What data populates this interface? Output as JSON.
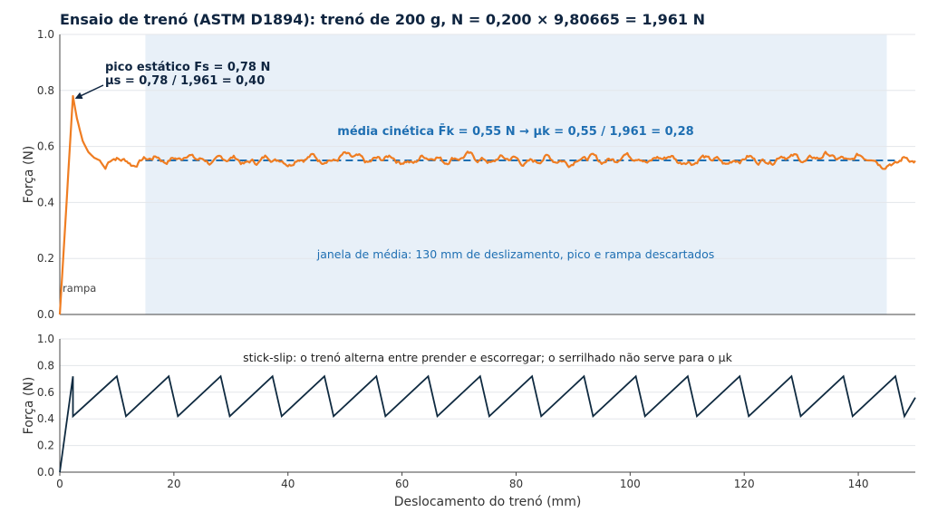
{
  "title": "Ensaio de trenó (ASTM D1894): trenó de 200 g, N = 0,200 × 9,80665 = 1,961 N",
  "colors": {
    "force_curve": "#ef7d22",
    "mean_line": "#1f6fb2",
    "window_fill": "#e8f0f8",
    "stick_slip": "#0f2a40",
    "annotation_dark": "#0f2540"
  },
  "chart_data": [
    {
      "type": "line",
      "name": "top",
      "ylabel": "Força (N)",
      "xlabel": "",
      "xlim": [
        0,
        150
      ],
      "ylim": [
        0,
        1.0
      ],
      "yticks": [
        "0.0",
        "0.2",
        "0.4",
        "0.6",
        "0.8",
        "1.0"
      ],
      "grid": true,
      "series": [
        {
          "style": "solid",
          "x": [
            0,
            2.3,
            3,
            4,
            5,
            6,
            7,
            8,
            9,
            10,
            12,
            14,
            15,
            20,
            30,
            40,
            50,
            60,
            70,
            80,
            90,
            100,
            110,
            120,
            130,
            140,
            145,
            150
          ],
          "y": [
            0,
            0.78,
            0.7,
            0.62,
            0.58,
            0.56,
            0.55,
            0.52,
            0.54,
            0.56,
            0.55,
            0.54,
            0.55,
            0.56,
            0.55,
            0.55,
            0.56,
            0.55,
            0.56,
            0.55,
            0.55,
            0.56,
            0.55,
            0.55,
            0.56,
            0.56,
            0.54,
            0.55
          ],
          "noise_amplitude": 0.015
        }
      ],
      "mean_kinetic": 0.55,
      "average_window_x": [
        15,
        145
      ],
      "annotations": {
        "peak_line1": "pico estático Fs = 0,78 N",
        "peak_line2": "μs = 0,78 / 1,961 = 0,40",
        "peak_point": [
          2.3,
          0.78
        ],
        "kinetic": "média cinética F̄k = 0,55 N   →   μk = 0,55 / 1,961 = 0,28",
        "window": "janela de média: 130 mm de deslizamento, pico e rampa descartados",
        "ramp": "rampa"
      }
    },
    {
      "type": "line",
      "name": "bottom",
      "ylabel": "Força (N)",
      "xlabel": "Deslocamento do trenó (mm)",
      "xlim": [
        0,
        150
      ],
      "ylim": [
        0,
        1.0
      ],
      "xticks": [
        "0",
        "20",
        "40",
        "60",
        "80",
        "100",
        "120",
        "140"
      ],
      "yticks": [
        "0.0",
        "0.2",
        "0.4",
        "0.6",
        "0.8",
        "1.0"
      ],
      "grid": true,
      "series": [
        {
          "style": "solid",
          "x": [
            0,
            2.3,
            2.3,
            10.0,
            11.6,
            19.1,
            20.7,
            28.2,
            29.8,
            37.3,
            38.9,
            46.4,
            48.0,
            55.5,
            57.1,
            64.6,
            66.2,
            73.7,
            75.3,
            82.8,
            84.4,
            91.9,
            93.5,
            101.0,
            102.6,
            110.1,
            111.7,
            119.2,
            120.8,
            128.3,
            129.9,
            137.4,
            139.0,
            146.5,
            148.1,
            150
          ],
          "y": [
            0,
            0.72,
            0.42,
            0.72,
            0.42,
            0.72,
            0.42,
            0.72,
            0.42,
            0.72,
            0.42,
            0.72,
            0.42,
            0.72,
            0.42,
            0.72,
            0.42,
            0.72,
            0.42,
            0.72,
            0.42,
            0.72,
            0.42,
            0.72,
            0.42,
            0.72,
            0.42,
            0.72,
            0.42,
            0.72,
            0.42,
            0.72,
            0.42,
            0.72,
            0.42,
            0.56
          ]
        }
      ],
      "annotations": {
        "stick_slip": "stick-slip: o trenó alterna entre prender e escorregar; o serrilhado não serve para o μk"
      }
    }
  ]
}
